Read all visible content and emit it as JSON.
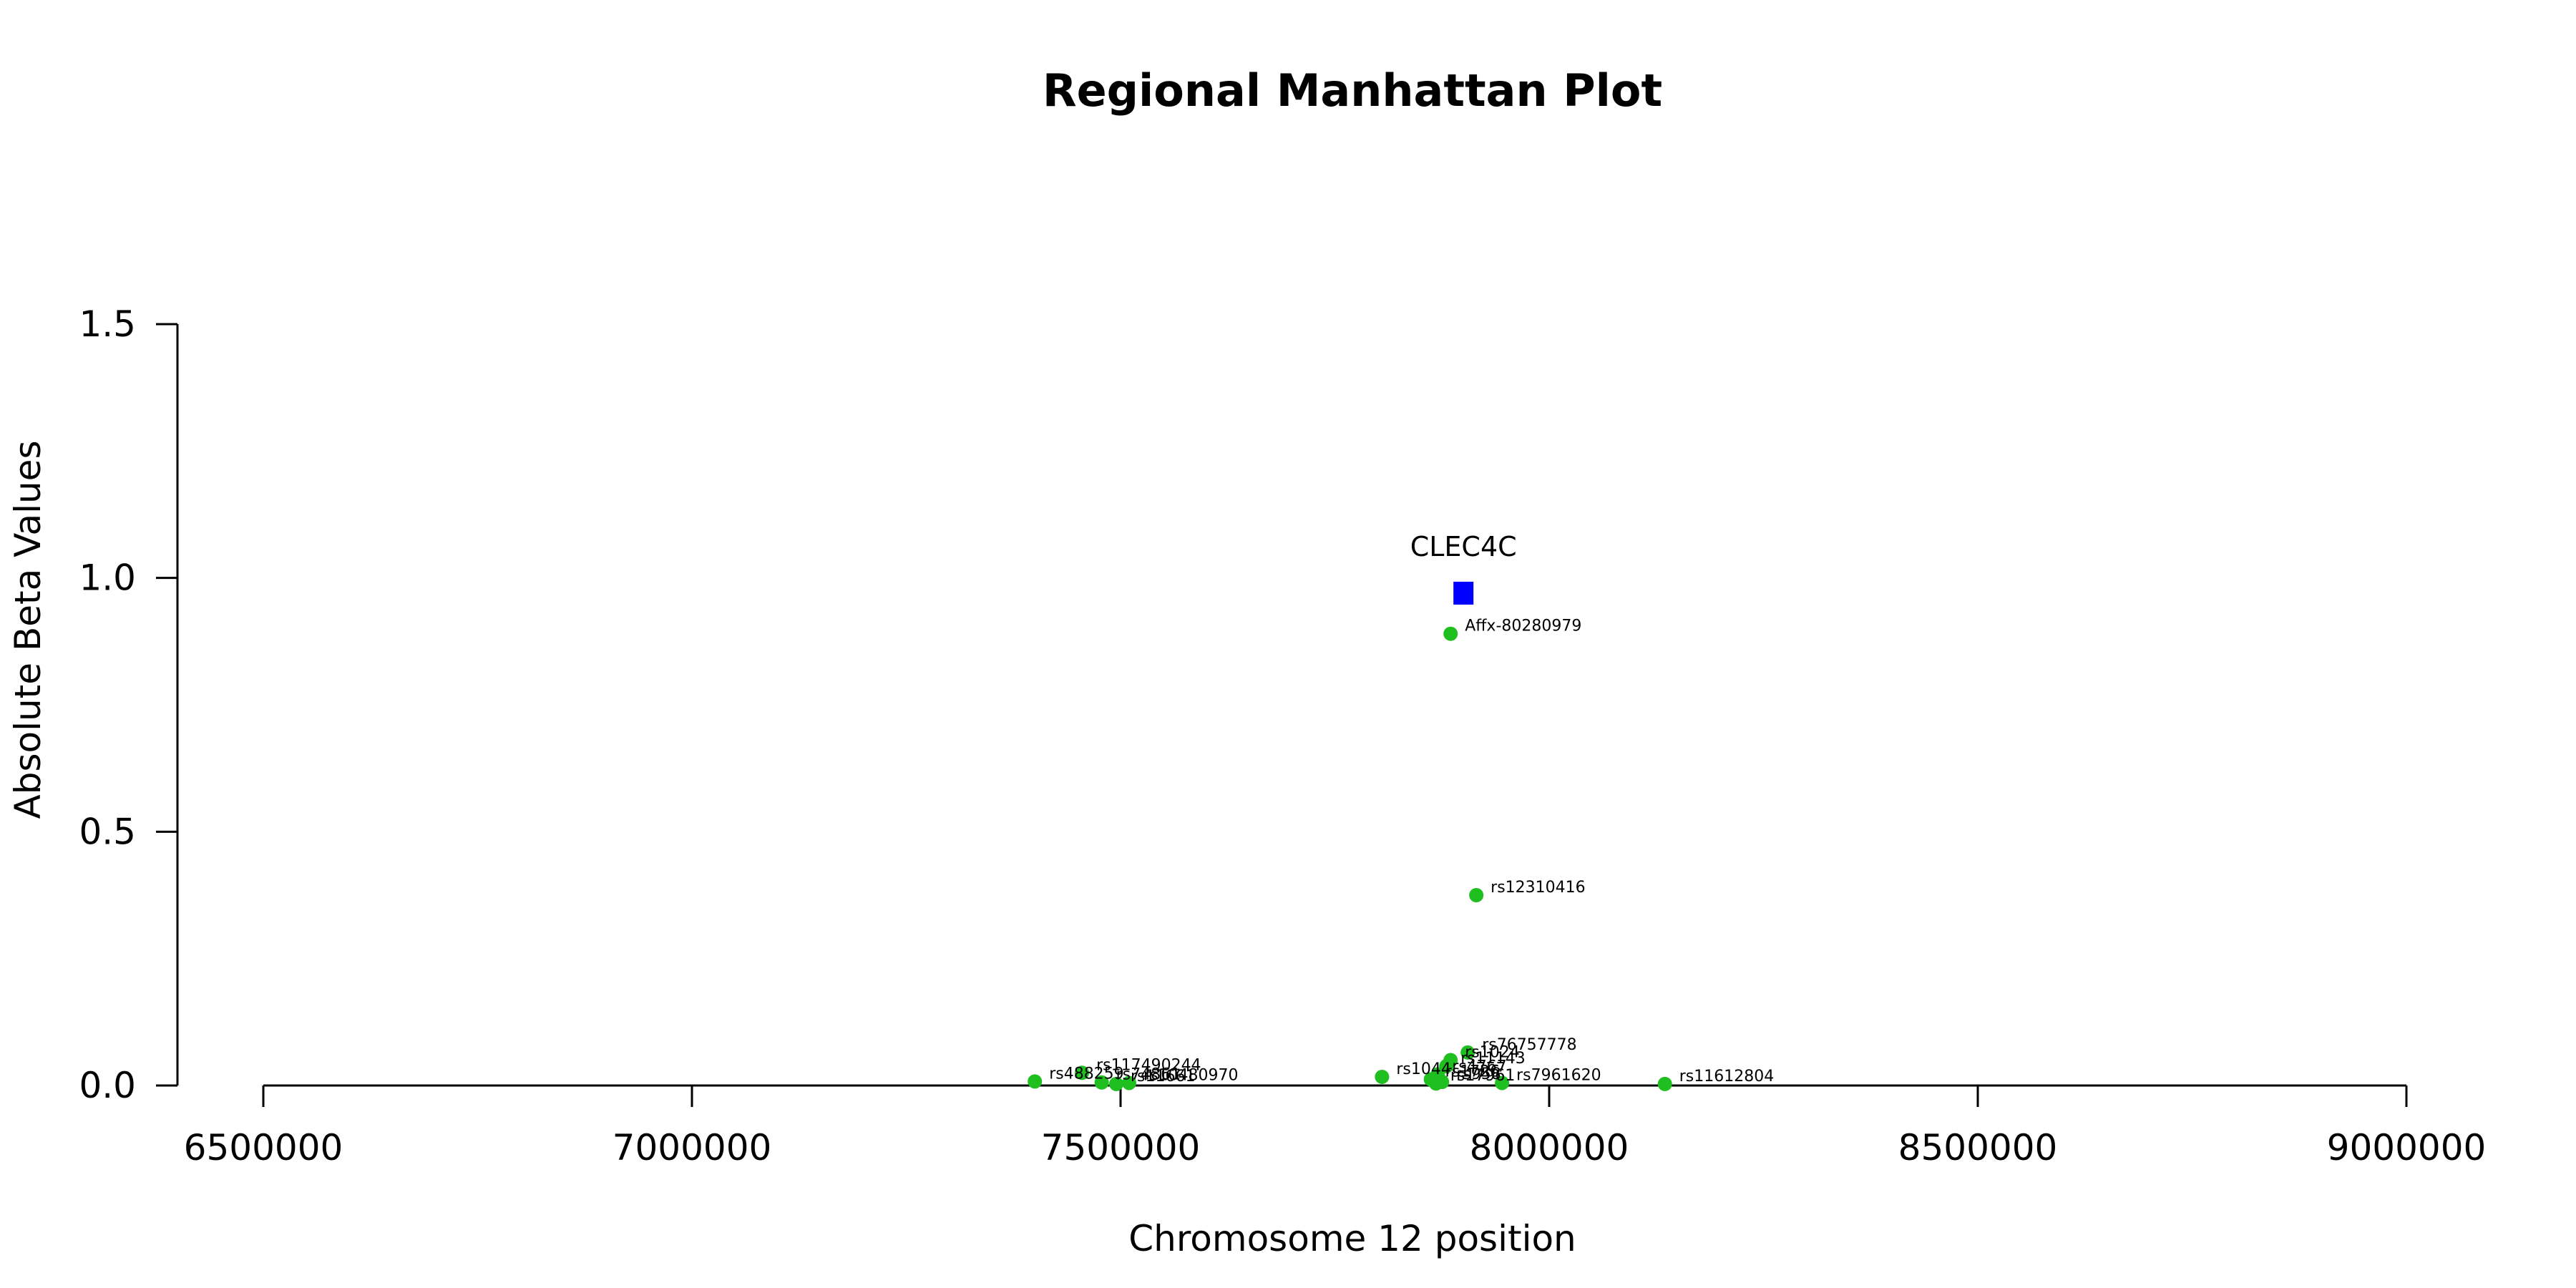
{
  "chart_data": {
    "type": "scatter",
    "title": "Regional Manhattan Plot",
    "xlabel": "Chromosome 12 position",
    "ylabel": "Absolute Beta Values",
    "xlim": [
      6500000,
      9000000
    ],
    "ylim": [
      0,
      1.5
    ],
    "x_ticks": [
      6500000,
      7000000,
      7500000,
      8000000,
      8500000,
      9000000
    ],
    "x_tick_labels": [
      "6500000",
      "7000000",
      "7500000",
      "8000000",
      "8500000",
      "9000000"
    ],
    "y_ticks": [
      0,
      0.5,
      1.0,
      1.5
    ],
    "y_tick_labels": [
      "0.0",
      "0.5",
      "1.0",
      "1.5"
    ],
    "grid": false,
    "colors": {
      "snp": "#1fbf1f",
      "gene": "#0000ff",
      "axis": "#000000"
    },
    "gene": {
      "name": "CLEC4C",
      "x": 7900000,
      "y": 0.97
    },
    "series": [
      {
        "name": "SNPs",
        "points": [
          {
            "label": "Affx-80280979",
            "x": 7885000,
            "y": 0.89
          },
          {
            "label": "rs12310416",
            "x": 7915000,
            "y": 0.375
          },
          {
            "label": "rs76757778",
            "x": 7905000,
            "y": 0.065
          },
          {
            "label": "rs11612804",
            "x": 8135000,
            "y": 0.003
          },
          {
            "label": "rs117490244",
            "x": 7455000,
            "y": 0.025
          },
          {
            "label": "rs488259",
            "x": 7400000,
            "y": 0.008
          },
          {
            "label": "rs10480970",
            "x": 7510000,
            "y": 0.005
          },
          {
            "label": "rs1044",
            "x": 7805000,
            "y": 0.017
          },
          {
            "label": "rs1024",
            "x": 7885000,
            "y": 0.05
          },
          {
            "label": "rs11143",
            "x": 7880000,
            "y": 0.038
          },
          {
            "label": "rs4767",
            "x": 7870000,
            "y": 0.022
          },
          {
            "label": "rs1726",
            "x": 7862000,
            "y": 0.012
          },
          {
            "label": "rs958",
            "x": 7875000,
            "y": 0.007
          },
          {
            "label": "rs7961620",
            "x": 7945000,
            "y": 0.005
          },
          {
            "label": "rs17961",
            "x": 7868000,
            "y": 0.004
          },
          {
            "label": "rs74861",
            "x": 7478000,
            "y": 0.006
          },
          {
            "label": "rs11661",
            "x": 7495000,
            "y": 0.003
          }
        ]
      }
    ]
  }
}
